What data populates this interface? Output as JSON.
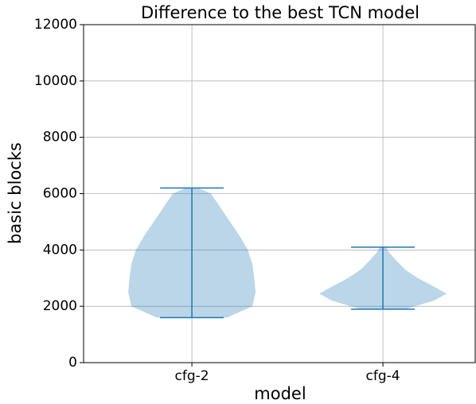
{
  "chart_data": {
    "type": "violin",
    "title": "Difference to the best TCN model",
    "xlabel": "model",
    "ylabel": "basic blocks",
    "categories": [
      "cfg-2",
      "cfg-4"
    ],
    "color": "#1f77b4",
    "grid": true,
    "xlim": [
      0.433,
      2.483
    ],
    "ylim": [
      0,
      12000
    ],
    "yticks": [
      0,
      2000,
      4000,
      6000,
      8000,
      10000,
      12000
    ],
    "series": [
      {
        "min": 1600,
        "max": 6200,
        "profile_y": [
          1600,
          2000,
          2500,
          3000,
          3500,
          4000,
          4500,
          5000,
          5500,
          6000,
          6200
        ],
        "profile_width": [
          0.55,
          0.95,
          1.0,
          0.98,
          0.95,
          0.88,
          0.75,
          0.6,
          0.45,
          0.3,
          0.1
        ]
      },
      {
        "min": 1900,
        "max": 4100,
        "profile_y": [
          1900,
          2200,
          2450,
          2700,
          3000,
          3300,
          3600,
          3900,
          4100
        ],
        "profile_width": [
          0.35,
          0.8,
          1.0,
          0.8,
          0.55,
          0.35,
          0.22,
          0.1,
          0.05
        ]
      }
    ]
  }
}
